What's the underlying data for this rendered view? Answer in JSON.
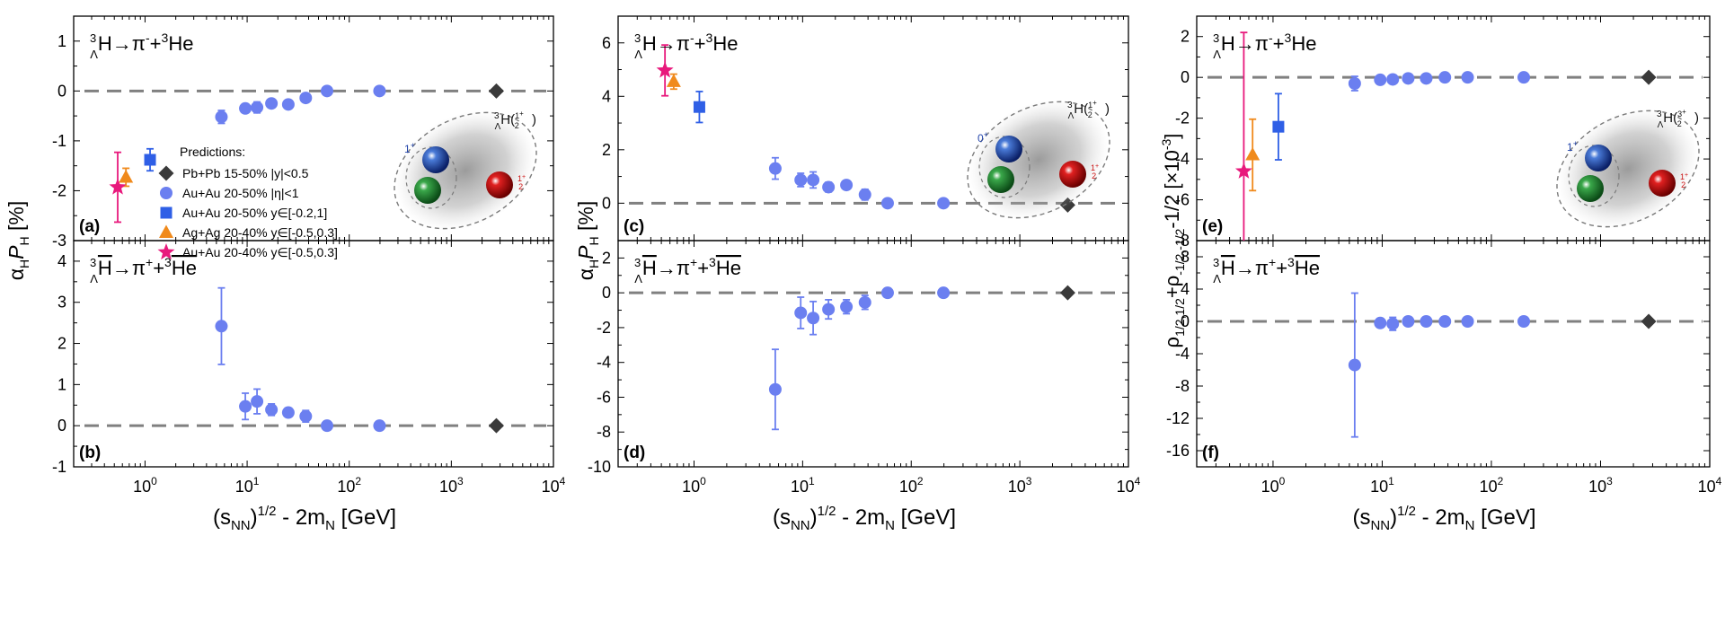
{
  "colors": {
    "star_data": "#6b7ff0",
    "pbpb": "#3a3a3a",
    "auau_aux": "#2f5fe6",
    "agag": "#f08a1c",
    "auau_star_hades": "#e8197c",
    "dash": "#808080"
  },
  "xaxis": {
    "label_main": "(s",
    "label_sub": "NN",
    "label_tail": ")",
    "label_sup": "1/2",
    "label_rest": " - 2m",
    "label_sub2": "N",
    "label_unit": " [GeV]",
    "ticks": [
      {
        "base": "10",
        "exp": "0"
      },
      {
        "base": "10",
        "exp": "1"
      },
      {
        "base": "10",
        "exp": "2"
      },
      {
        "base": "10",
        "exp": "3"
      },
      {
        "base": "10",
        "exp": "4"
      }
    ]
  },
  "legend": {
    "title": "Predictions:",
    "entries": [
      {
        "marker": "diamond",
        "color_key": "pbpb",
        "text": "Pb+Pb 15-50% |y|<0.5"
      },
      {
        "marker": "circle",
        "color_key": "star_data",
        "text": "Au+Au 20-50% |η|<1"
      },
      {
        "marker": "square",
        "color_key": "auau_aux",
        "text": "Au+Au 20-50% y∈[-0.2,1]"
      },
      {
        "marker": "triangle",
        "color_key": "agag",
        "text": "Ag+Ag 20-40% y∈[-0.5,0.3]"
      },
      {
        "marker": "star",
        "color_key": "auau_star_hades",
        "text": "Au+Au 20-40% y∈[-0.5,0.3]"
      }
    ]
  },
  "ylabels": {
    "col1": {
      "alpha": "α",
      "sub": "H",
      "P": "P",
      "psub": "H",
      "unit": " [%]"
    },
    "col2": {
      "alpha": "α",
      "sub": "H",
      "P": "P",
      "psub": "H",
      "unit": " [%]"
    },
    "col3": {
      "text": "ρ",
      "sub1": "1/2,1/2",
      "plus": "+ρ",
      "sub2": "-1/2,-1/2",
      "tail": "-1/2  [×10",
      "sup": "-3",
      "close": "]"
    }
  },
  "panel_texts": {
    "decay_top": {
      "pre": "3",
      "sub": "Λ",
      "main": "H→π",
      "sup": "-",
      "mid": "+",
      "pre2": "3",
      "tail": "He"
    },
    "decay_bot": {
      "pre": "3",
      "sub": "Λ",
      "main": "H",
      "arrow": "→π",
      "sup": "+",
      "mid": "+",
      "pre2": "3",
      "tail": "He"
    },
    "illus_a": {
      "title_pre": "3",
      "title_sub": "Λ",
      "title_main": "H(",
      "title_num": "1",
      "title_sup": "+",
      "title_den": "2",
      "spin_outer": "1",
      "spin_outer_sup": "+",
      "spin_hyp_num": "1",
      "spin_hyp_sup": "+",
      "spin_hyp_den": "2"
    },
    "illus_c": {
      "title_pre": "3",
      "title_sub": "Λ",
      "title_main": "H(",
      "title_num": "1",
      "title_sup": "+",
      "title_den": "2",
      "spin_outer": "0",
      "spin_outer_sup": "+",
      "spin_hyp_num": "1",
      "spin_hyp_sup": "+",
      "spin_hyp_den": "2"
    },
    "illus_e": {
      "title_pre": "3",
      "title_sub": "Λ",
      "title_main": "H(",
      "title_num": "3",
      "title_sup": "+",
      "title_den": "2",
      "spin_outer": "1",
      "spin_outer_sup": "+",
      "spin_hyp_num": "1",
      "spin_hyp_sup": "+",
      "spin_hyp_den": "2"
    }
  },
  "chart_data": [
    {
      "panel": "(a)",
      "type": "scatter",
      "xscale": "log",
      "xlim": [
        0.2,
        10000
      ],
      "ylim": [
        -3,
        1.5
      ],
      "yticks": [
        -3,
        -2,
        -1,
        0,
        1
      ],
      "ytick_labels": [
        "-3",
        "-2",
        "-1",
        "0",
        "1"
      ],
      "series": [
        {
          "name": "",
          "color_key": "star_data",
          "marker": "circle",
          "points": [
            {
              "x": 5.6,
              "y": -0.52,
              "err": 0.13
            },
            {
              "x": 9.6,
              "y": -0.35,
              "err": 0.08
            },
            {
              "x": 12.5,
              "y": -0.33,
              "err": 0.11
            },
            {
              "x": 17.3,
              "y": -0.25,
              "err": 0.05
            },
            {
              "x": 25.3,
              "y": -0.27,
              "err": 0.05
            },
            {
              "x": 37.5,
              "y": -0.14,
              "err": 0.06
            },
            {
              "x": 60.6,
              "y": 0.0,
              "err": 0.02
            },
            {
              "x": 198,
              "y": 0.0,
              "err": 0.02
            }
          ]
        },
        {
          "name": "",
          "color_key": "pbpb",
          "marker": "diamond",
          "points": [
            {
              "x": 2760,
              "y": 0.0
            }
          ]
        },
        {
          "name": "",
          "color_key": "auau_aux",
          "marker": "square",
          "points": [
            {
              "x": 1.12,
              "y": -1.38,
              "err": 0.22
            }
          ]
        },
        {
          "name": "",
          "color_key": "agag",
          "marker": "triangle",
          "points": [
            {
              "x": 0.65,
              "y": -1.73,
              "err": 0.18
            }
          ]
        },
        {
          "name": "",
          "color_key": "auau_star_hades",
          "marker": "star",
          "points": [
            {
              "x": 0.54,
              "y": -1.93,
              "err": 0.7
            }
          ]
        }
      ]
    },
    {
      "panel": "(b)",
      "type": "scatter",
      "xscale": "log",
      "xlim": [
        0.2,
        10000
      ],
      "ylim": [
        -1,
        4.5
      ],
      "yticks": [
        -1,
        0,
        1,
        2,
        3,
        4
      ],
      "ytick_labels": [
        "-1",
        "0",
        "1",
        "2",
        "3",
        "4"
      ],
      "series": [
        {
          "name": "",
          "color_key": "star_data",
          "marker": "circle",
          "points": [
            {
              "x": 5.6,
              "y": 2.42,
              "err": 0.93
            },
            {
              "x": 9.6,
              "y": 0.47,
              "err": 0.32
            },
            {
              "x": 12.5,
              "y": 0.59,
              "err": 0.3
            },
            {
              "x": 17.3,
              "y": 0.39,
              "err": 0.14
            },
            {
              "x": 25.3,
              "y": 0.32,
              "err": 0.1
            },
            {
              "x": 37.5,
              "y": 0.23,
              "err": 0.14
            },
            {
              "x": 60.6,
              "y": 0.0,
              "err": 0.02
            },
            {
              "x": 198,
              "y": 0.0,
              "err": 0.02
            }
          ]
        },
        {
          "name": "",
          "color_key": "pbpb",
          "marker": "diamond",
          "points": [
            {
              "x": 2760,
              "y": 0.0
            }
          ]
        }
      ]
    },
    {
      "panel": "(c)",
      "type": "scatter",
      "xscale": "log",
      "xlim": [
        0.2,
        10000
      ],
      "ylim": [
        -1.4,
        7
      ],
      "yticks": [
        0,
        2,
        4,
        6
      ],
      "ytick_labels": [
        "0",
        "2",
        "4",
        "6"
      ],
      "series": [
        {
          "name": "",
          "color_key": "star_data",
          "marker": "circle",
          "points": [
            {
              "x": 5.6,
              "y": 1.3,
              "err": 0.4
            },
            {
              "x": 9.6,
              "y": 0.87,
              "err": 0.25
            },
            {
              "x": 12.5,
              "y": 0.87,
              "err": 0.3
            },
            {
              "x": 17.3,
              "y": 0.6,
              "err": 0.18
            },
            {
              "x": 25.3,
              "y": 0.68,
              "err": 0.15
            },
            {
              "x": 37.5,
              "y": 0.32,
              "err": 0.2
            },
            {
              "x": 60.6,
              "y": 0.0,
              "err": 0.05
            },
            {
              "x": 198,
              "y": 0.0,
              "err": 0.05
            }
          ]
        },
        {
          "name": "",
          "color_key": "pbpb",
          "marker": "diamond",
          "points": [
            {
              "x": 2760,
              "y": -0.07
            }
          ]
        },
        {
          "name": "",
          "color_key": "auau_aux",
          "marker": "square",
          "points": [
            {
              "x": 1.12,
              "y": 3.6,
              "err": 0.58
            }
          ]
        },
        {
          "name": "",
          "color_key": "agag",
          "marker": "triangle",
          "points": [
            {
              "x": 0.65,
              "y": 4.55,
              "err": 0.28
            }
          ]
        },
        {
          "name": "",
          "color_key": "auau_star_hades",
          "marker": "star",
          "points": [
            {
              "x": 0.54,
              "y": 4.97,
              "err": 0.95
            }
          ]
        }
      ]
    },
    {
      "panel": "(d)",
      "type": "scatter",
      "xscale": "log",
      "xlim": [
        0.2,
        10000
      ],
      "ylim": [
        -10,
        3
      ],
      "yticks": [
        -10,
        -8,
        -6,
        -4,
        -2,
        0,
        2
      ],
      "ytick_labels": [
        "-10",
        "-8",
        "-6",
        "-4",
        "-2",
        "0",
        "2"
      ],
      "series": [
        {
          "name": "",
          "color_key": "star_data",
          "marker": "circle",
          "points": [
            {
              "x": 5.6,
              "y": -5.55,
              "err": 2.3
            },
            {
              "x": 9.6,
              "y": -1.15,
              "err": 0.9
            },
            {
              "x": 12.5,
              "y": -1.45,
              "err": 0.95
            },
            {
              "x": 17.3,
              "y": -0.95,
              "err": 0.55
            },
            {
              "x": 25.3,
              "y": -0.8,
              "err": 0.4
            },
            {
              "x": 37.5,
              "y": -0.55,
              "err": 0.4
            },
            {
              "x": 60.6,
              "y": 0.0,
              "err": 0.12
            },
            {
              "x": 198,
              "y": 0.0,
              "err": 0.1
            }
          ]
        },
        {
          "name": "",
          "color_key": "pbpb",
          "marker": "diamond",
          "points": [
            {
              "x": 2760,
              "y": 0.0
            }
          ]
        }
      ]
    },
    {
      "panel": "(e)",
      "type": "scatter",
      "xscale": "log",
      "xlim": [
        0.2,
        10000
      ],
      "ylim": [
        -8,
        3
      ],
      "yticks": [
        -8,
        -6,
        -4,
        -2,
        0,
        2
      ],
      "ytick_labels": [
        "-8",
        "-6",
        "-4",
        "-2",
        "0",
        "2"
      ],
      "series": [
        {
          "name": "",
          "color_key": "star_data",
          "marker": "circle",
          "points": [
            {
              "x": 5.6,
              "y": -0.3,
              "err": 0.35
            },
            {
              "x": 9.6,
              "y": -0.12,
              "err": 0.1
            },
            {
              "x": 12.5,
              "y": -0.1,
              "err": 0.1
            },
            {
              "x": 17.3,
              "y": -0.05,
              "err": 0.08
            },
            {
              "x": 25.3,
              "y": -0.05,
              "err": 0.06
            },
            {
              "x": 37.5,
              "y": 0.0,
              "err": 0.05
            },
            {
              "x": 60.6,
              "y": 0.0,
              "err": 0.04
            },
            {
              "x": 198,
              "y": 0.0,
              "err": 0.04
            }
          ]
        },
        {
          "name": "",
          "color_key": "pbpb",
          "marker": "diamond",
          "points": [
            {
              "x": 2760,
              "y": 0.0
            }
          ]
        },
        {
          "name": "",
          "color_key": "auau_aux",
          "marker": "square",
          "points": [
            {
              "x": 1.12,
              "y": -2.42,
              "err": 1.62
            }
          ]
        },
        {
          "name": "",
          "color_key": "agag",
          "marker": "triangle",
          "points": [
            {
              "x": 0.65,
              "y": -3.8,
              "err": 1.75
            }
          ]
        },
        {
          "name": "",
          "color_key": "auau_star_hades",
          "marker": "star",
          "points": [
            {
              "x": 0.54,
              "y": -4.6,
              "err": 6.8
            }
          ]
        }
      ]
    },
    {
      "panel": "(f)",
      "type": "scatter",
      "xscale": "log",
      "xlim": [
        0.2,
        10000
      ],
      "ylim": [
        -18,
        10
      ],
      "yticks": [
        -16,
        -12,
        -8,
        -4,
        0,
        4,
        8
      ],
      "ytick_labels": [
        "-16",
        "-12",
        "-8",
        "-4",
        "0",
        "4",
        "8"
      ],
      "series": [
        {
          "name": "",
          "color_key": "star_data",
          "marker": "circle",
          "points": [
            {
              "x": 5.6,
              "y": -5.4,
              "err": 8.9
            },
            {
              "x": 9.6,
              "y": -0.2,
              "err": 0.5
            },
            {
              "x": 12.5,
              "y": -0.3,
              "err": 0.8
            },
            {
              "x": 17.3,
              "y": 0.0,
              "err": 0.4
            },
            {
              "x": 25.3,
              "y": 0.0,
              "err": 0.3
            },
            {
              "x": 37.5,
              "y": 0.0,
              "err": 0.2
            },
            {
              "x": 60.6,
              "y": 0.0,
              "err": 0.2
            },
            {
              "x": 198,
              "y": 0.0,
              "err": 0.2
            }
          ]
        },
        {
          "name": "",
          "color_key": "pbpb",
          "marker": "diamond",
          "points": [
            {
              "x": 2760,
              "y": 0.0
            }
          ]
        }
      ]
    }
  ]
}
